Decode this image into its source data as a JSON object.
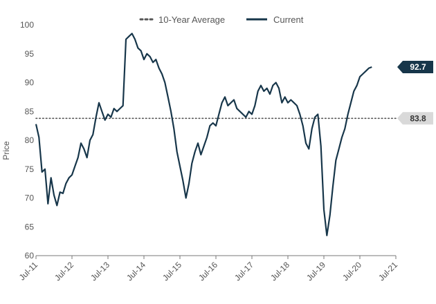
{
  "chart_data": {
    "type": "line",
    "ylabel": "Price",
    "xlabel": "",
    "ylim": [
      60,
      100
    ],
    "yticks": [
      60,
      65,
      70,
      75,
      80,
      85,
      90,
      95,
      100
    ],
    "xlim": [
      "2011-07",
      "2021-07"
    ],
    "xticks": [
      "Jul-11",
      "Jul-12",
      "Jul-13",
      "Jul-14",
      "Jul-15",
      "Jul-16",
      "Jul-17",
      "Jul-18",
      "Jul-19",
      "Jul-20",
      "Jul-21"
    ],
    "grid": false,
    "legend_position": "top-center",
    "series": [
      {
        "name": "10-Year Average",
        "style": "dotted",
        "color": "#555555",
        "value": 83.8,
        "label": "83.8"
      },
      {
        "name": "Current",
        "style": "solid",
        "color": "#17364a",
        "last_label": "92.7",
        "points": [
          [
            "2011-07",
            82.8
          ],
          [
            "2011-08",
            80.5
          ],
          [
            "2011-09",
            74.5
          ],
          [
            "2011-10",
            75.0
          ],
          [
            "2011-11",
            69.0
          ],
          [
            "2011-12",
            73.5
          ],
          [
            "2012-01",
            70.5
          ],
          [
            "2012-02",
            68.7
          ],
          [
            "2012-03",
            71.0
          ],
          [
            "2012-04",
            70.8
          ],
          [
            "2012-05",
            72.5
          ],
          [
            "2012-06",
            73.5
          ],
          [
            "2012-07",
            74.0
          ],
          [
            "2012-08",
            75.5
          ],
          [
            "2012-09",
            77.0
          ],
          [
            "2012-10",
            79.5
          ],
          [
            "2012-11",
            78.5
          ],
          [
            "2012-12",
            77.0
          ],
          [
            "2013-01",
            80.0
          ],
          [
            "2013-02",
            81.0
          ],
          [
            "2013-03",
            84.0
          ],
          [
            "2013-04",
            86.5
          ],
          [
            "2013-05",
            85.0
          ],
          [
            "2013-06",
            83.5
          ],
          [
            "2013-07",
            84.5
          ],
          [
            "2013-08",
            84.0
          ],
          [
            "2013-09",
            85.5
          ],
          [
            "2013-10",
            85.0
          ],
          [
            "2013-11",
            85.5
          ],
          [
            "2013-12",
            86.0
          ],
          [
            "2014-01",
            97.5
          ],
          [
            "2014-02",
            98.0
          ],
          [
            "2014-03",
            98.5
          ],
          [
            "2014-04",
            97.5
          ],
          [
            "2014-05",
            96.0
          ],
          [
            "2014-06",
            95.5
          ],
          [
            "2014-07",
            94.0
          ],
          [
            "2014-08",
            95.0
          ],
          [
            "2014-09",
            94.5
          ],
          [
            "2014-10",
            93.5
          ],
          [
            "2014-11",
            94.0
          ],
          [
            "2014-12",
            92.5
          ],
          [
            "2015-01",
            91.5
          ],
          [
            "2015-02",
            90.0
          ],
          [
            "2015-03",
            87.5
          ],
          [
            "2015-04",
            85.0
          ],
          [
            "2015-05",
            82.0
          ],
          [
            "2015-06",
            78.0
          ],
          [
            "2015-07",
            75.5
          ],
          [
            "2015-08",
            73.0
          ],
          [
            "2015-09",
            70.0
          ],
          [
            "2015-10",
            72.5
          ],
          [
            "2015-11",
            76.0
          ],
          [
            "2015-12",
            78.0
          ],
          [
            "2016-01",
            79.5
          ],
          [
            "2016-02",
            77.5
          ],
          [
            "2016-03",
            79.0
          ],
          [
            "2016-04",
            80.5
          ],
          [
            "2016-05",
            82.5
          ],
          [
            "2016-06",
            83.0
          ],
          [
            "2016-07",
            82.5
          ],
          [
            "2016-08",
            84.5
          ],
          [
            "2016-09",
            86.5
          ],
          [
            "2016-10",
            87.5
          ],
          [
            "2016-11",
            86.0
          ],
          [
            "2016-12",
            86.5
          ],
          [
            "2017-01",
            87.0
          ],
          [
            "2017-02",
            85.5
          ],
          [
            "2017-03",
            85.0
          ],
          [
            "2017-04",
            84.5
          ],
          [
            "2017-05",
            84.0
          ],
          [
            "2017-06",
            85.0
          ],
          [
            "2017-07",
            84.5
          ],
          [
            "2017-08",
            86.0
          ],
          [
            "2017-09",
            88.5
          ],
          [
            "2017-10",
            89.5
          ],
          [
            "2017-11",
            88.5
          ],
          [
            "2017-12",
            89.0
          ],
          [
            "2018-01",
            88.0
          ],
          [
            "2018-02",
            89.5
          ],
          [
            "2018-03",
            90.0
          ],
          [
            "2018-04",
            89.0
          ],
          [
            "2018-05",
            86.5
          ],
          [
            "2018-06",
            87.5
          ],
          [
            "2018-07",
            86.5
          ],
          [
            "2018-08",
            87.0
          ],
          [
            "2018-09",
            86.5
          ],
          [
            "2018-10",
            86.0
          ],
          [
            "2018-11",
            84.5
          ],
          [
            "2018-12",
            82.5
          ],
          [
            "2019-01",
            79.5
          ],
          [
            "2019-02",
            78.5
          ],
          [
            "2019-03",
            82.0
          ],
          [
            "2019-04",
            84.0
          ],
          [
            "2019-05",
            84.5
          ],
          [
            "2019-06",
            79.0
          ],
          [
            "2019-07",
            68.0
          ],
          [
            "2019-08",
            63.5
          ],
          [
            "2019-09",
            67.0
          ],
          [
            "2019-10",
            72.0
          ],
          [
            "2019-11",
            76.5
          ],
          [
            "2019-12",
            78.5
          ],
          [
            "2020-01",
            80.5
          ],
          [
            "2020-02",
            82.0
          ],
          [
            "2020-03",
            84.5
          ],
          [
            "2020-04",
            86.5
          ],
          [
            "2020-05",
            88.5
          ],
          [
            "2020-06",
            89.5
          ],
          [
            "2020-07",
            91.0
          ],
          [
            "2020-08",
            91.5
          ],
          [
            "2020-09",
            92.0
          ],
          [
            "2020-10",
            92.5
          ],
          [
            "2020-11",
            92.7
          ]
        ]
      }
    ]
  }
}
